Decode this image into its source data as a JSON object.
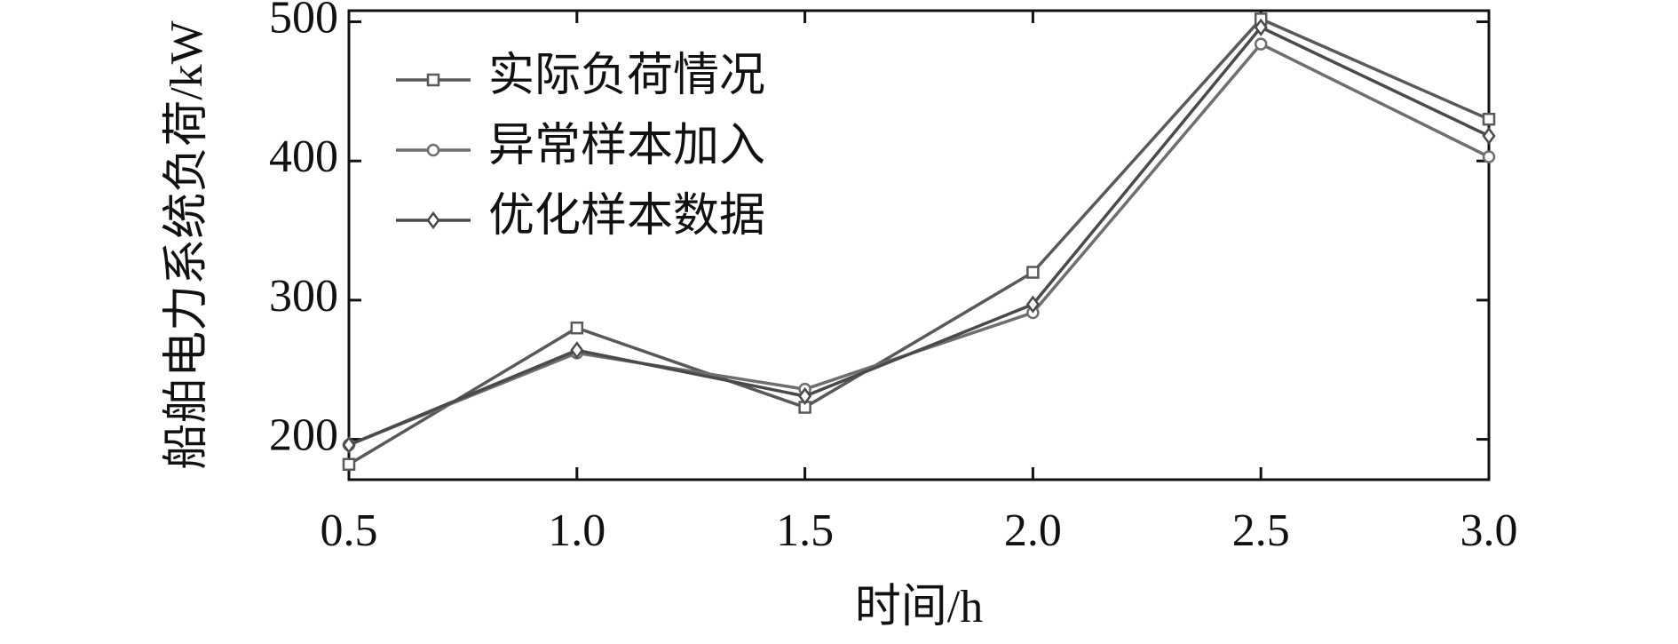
{
  "chart_data": {
    "type": "line",
    "xlabel": "时间/h",
    "ylabel": "船舶电力系统负荷/kW",
    "x": [
      0.5,
      1.0,
      1.5,
      2.0,
      2.5,
      3.0
    ],
    "series": [
      {
        "name": "实际负荷情况",
        "color": "#595959",
        "marker": "square",
        "values": [
          182,
          280,
          223,
          320,
          502,
          430
        ]
      },
      {
        "name": "异常样本加入",
        "color": "#6e6e6e",
        "marker": "circle",
        "values": [
          196,
          262,
          236,
          291,
          484,
          403
        ]
      },
      {
        "name": "优化样本数据",
        "color": "#4a4a4a",
        "marker": "diamond",
        "values": [
          196,
          264,
          231,
          297,
          496,
          418
        ]
      }
    ],
    "xlim": [
      0.5,
      3.0
    ],
    "ylim": [
      171,
      508
    ],
    "xticks": [
      0.5,
      {
        "value": 1.0,
        "label": "1.0"
      },
      1.5,
      {
        "value": 2.0,
        "label": "2.0"
      },
      2.5,
      {
        "value": 3.0,
        "label": "3.0"
      }
    ],
    "yticks": [
      200,
      300,
      400,
      500
    ],
    "legend": "upper left"
  }
}
